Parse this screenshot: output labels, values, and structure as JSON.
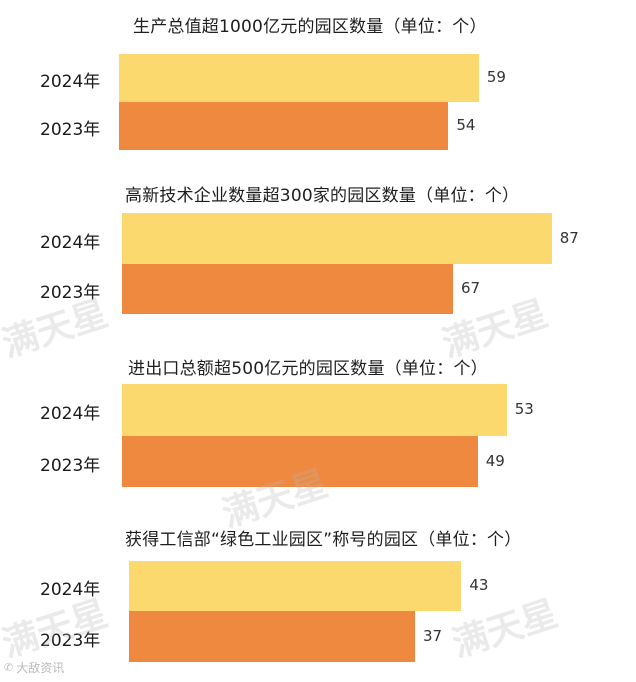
{
  "chart_data": [
    {
      "type": "bar",
      "orientation": "horizontal",
      "title": "生产总值超1000亿元的园区数量（单位：个）",
      "categories": [
        "2024年",
        "2023年"
      ],
      "values": [
        59,
        54
      ]
    },
    {
      "type": "bar",
      "orientation": "horizontal",
      "title": "高新技术企业数量超300家的园区数量（单位：个）",
      "categories": [
        "2024年",
        "2023年"
      ],
      "values": [
        87,
        67
      ]
    },
    {
      "type": "bar",
      "orientation": "horizontal",
      "title": "进出口总额超500亿元的园区数量（单位：个）",
      "categories": [
        "2024年",
        "2023年"
      ],
      "values": [
        53,
        49
      ]
    },
    {
      "type": "bar",
      "orientation": "horizontal",
      "title": "获得工信部“绿色工业园区”称号的园区（单位：个）",
      "categories": [
        "2024年",
        "2023年"
      ],
      "values": [
        43,
        37
      ]
    }
  ],
  "colors": {
    "y2024": "#fcd96f",
    "y2023": "#ef8940"
  },
  "watermark": "满天星",
  "source": {
    "icon": "phone-icon",
    "text": "大敌资讯"
  }
}
